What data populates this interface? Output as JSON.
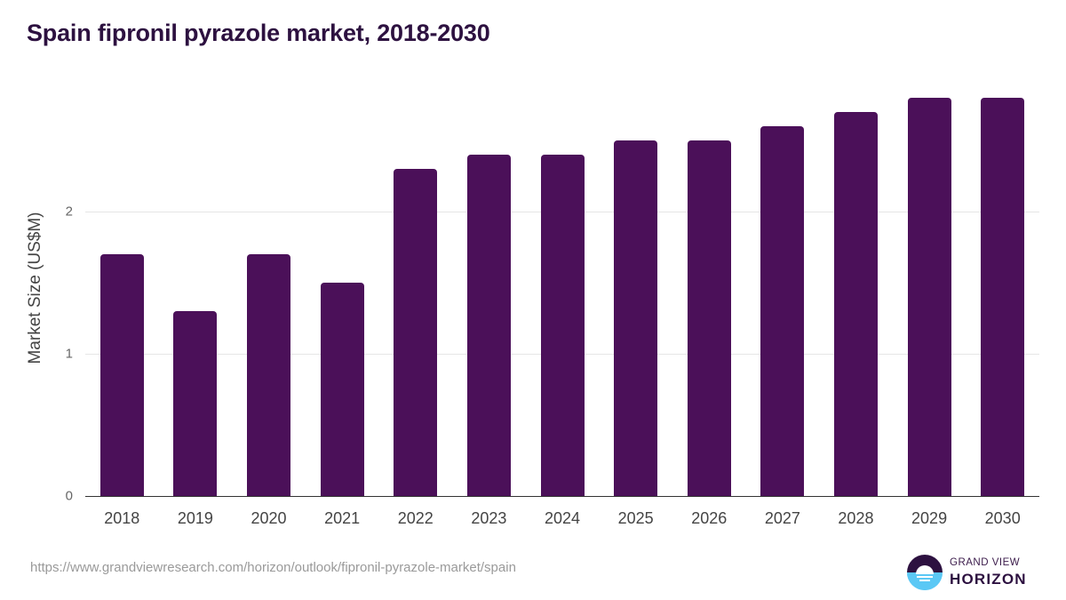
{
  "title": "Spain fipronil pyrazole market, 2018-2030",
  "source_url": "https://www.grandviewresearch.com/horizon/outlook/fipronil-pyrazole-market/spain",
  "logo": {
    "line1": "GRAND VIEW",
    "line2": "HORIZON",
    "icon": "grand-view-horizon-logo-icon"
  },
  "colors": {
    "bar": "#4b1059",
    "title": "#2d1140",
    "logo_top": "#2d1140",
    "logo_bottom": "#5bc8f5"
  },
  "chart_data": {
    "type": "bar",
    "title": "Spain fipronil pyrazole market, 2018-2030",
    "xlabel": "",
    "ylabel": "Market Size (US$M)",
    "categories": [
      "2018",
      "2019",
      "2020",
      "2021",
      "2022",
      "2023",
      "2024",
      "2025",
      "2026",
      "2027",
      "2028",
      "2029",
      "2030"
    ],
    "values": [
      1.7,
      1.3,
      1.7,
      1.5,
      2.3,
      2.4,
      2.4,
      2.5,
      2.5,
      2.6,
      2.7,
      2.8,
      2.8
    ],
    "yticks": [
      "0",
      "1",
      "2"
    ],
    "ylim": [
      0,
      3
    ],
    "grid": true,
    "legend": "none"
  }
}
